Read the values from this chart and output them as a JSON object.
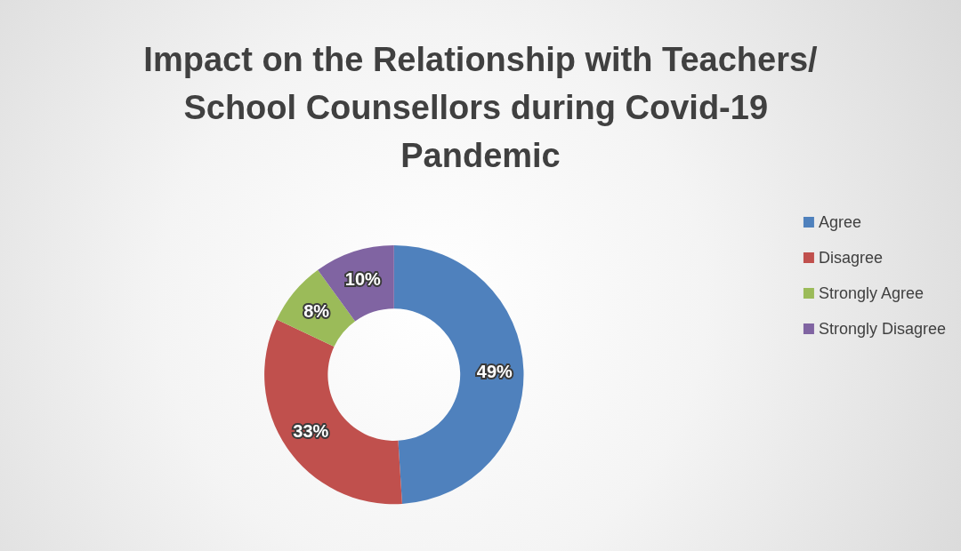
{
  "chart_data": {
    "type": "donut",
    "title": "Impact on the Relationship with Teachers/School Counsellors during Covid-19 Pandemic",
    "categories": [
      "Agree",
      "Disagree",
      "Strongly Agree",
      "Strongly Disagree"
    ],
    "values": [
      49,
      33,
      8,
      10
    ],
    "colors": [
      "#4f81bd",
      "#c0504d",
      "#9bbb59",
      "#8064a2"
    ],
    "value_labels": [
      "49%",
      "33%",
      "8%",
      "10%"
    ],
    "legend": "right"
  }
}
